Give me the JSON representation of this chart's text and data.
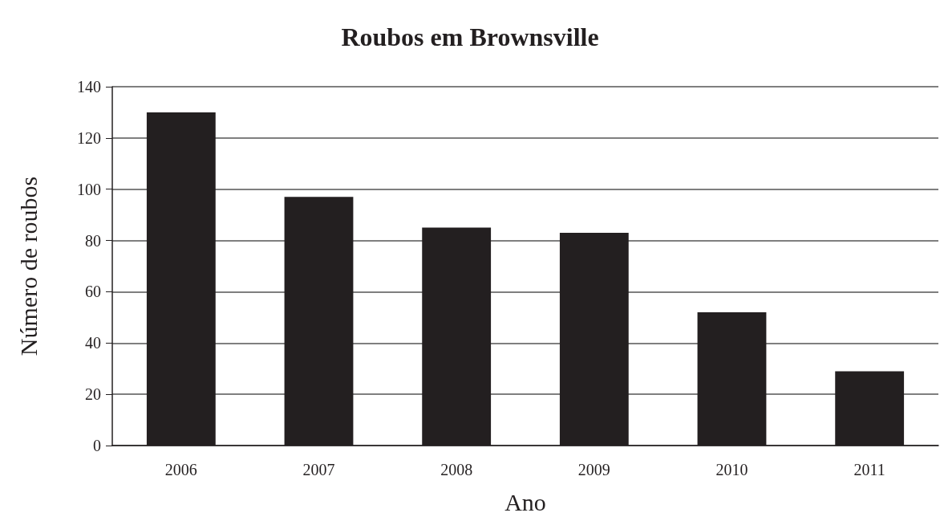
{
  "chart_data": {
    "type": "bar",
    "title": "Roubos em Brownsville",
    "xlabel": "Ano",
    "ylabel": "Número de roubos",
    "categories": [
      "2006",
      "2007",
      "2008",
      "2009",
      "2010",
      "2011"
    ],
    "values": [
      130,
      97,
      85,
      83,
      52,
      29
    ],
    "color": "#231f20",
    "ylim": [
      0,
      140
    ],
    "yticks": [
      0,
      20,
      40,
      60,
      80,
      100,
      120,
      140
    ],
    "grid": "y"
  }
}
